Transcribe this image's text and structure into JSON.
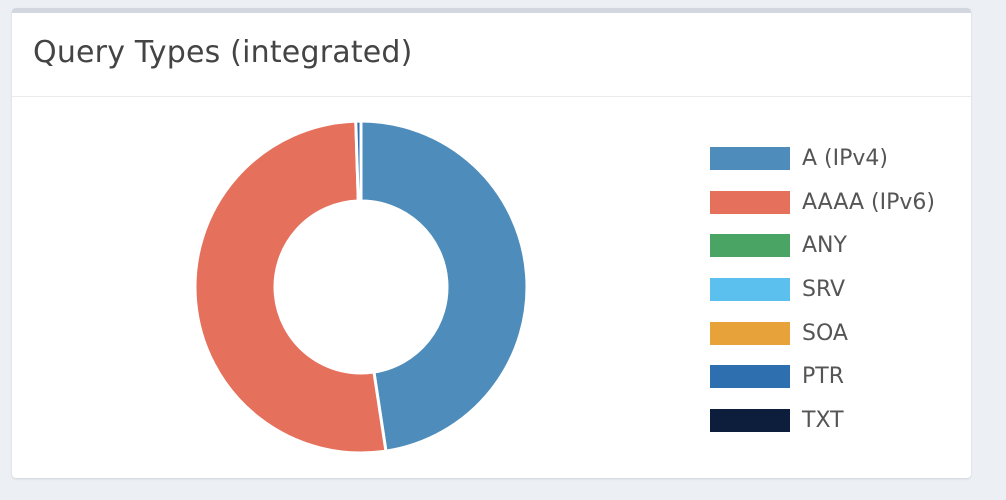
{
  "title": "Query Types (integrated)",
  "chart_data": {
    "type": "pie",
    "donut": true,
    "legend_position": "right",
    "categories": [
      "A (IPv4)",
      "AAAA (IPv6)",
      "ANY",
      "SRV",
      "SOA",
      "PTR",
      "TXT"
    ],
    "values": [
      47.6,
      51.9,
      0.0,
      0.0,
      0.0,
      0.5,
      0.0
    ],
    "colors": [
      "#4e8dbb",
      "#e5705b",
      "#4aa564",
      "#5bc0ed",
      "#e8a23a",
      "#2e6fb0",
      "#0c1e3c"
    ]
  }
}
